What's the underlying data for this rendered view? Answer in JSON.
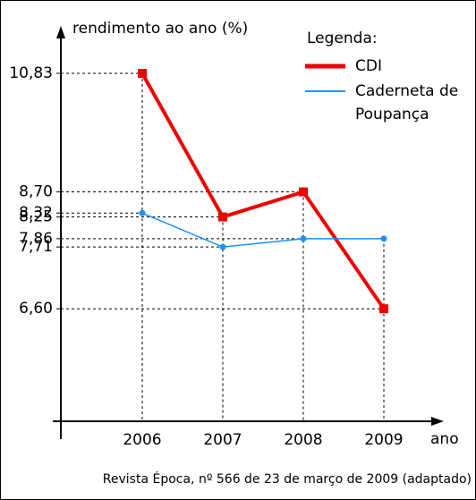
{
  "chart_data": {
    "type": "line",
    "title": "rendimento ao ano (%)",
    "x_label": "ano",
    "legend_title": "Legenda:",
    "source": "Revista Época, nº 566 de 23 de março de 2009 (adaptado)",
    "categories": [
      "2006",
      "2007",
      "2008",
      "2009"
    ],
    "series": [
      {
        "name": "CDI",
        "color": "#ee0000",
        "values": [
          10.83,
          8.25,
          8.7,
          6.6
        ]
      },
      {
        "name": "Caderneta de Poupança",
        "color": "#1e90ff",
        "values": [
          8.32,
          7.71,
          7.86,
          7.86
        ]
      }
    ],
    "ylim": [
      4.45,
      11.65
    ],
    "yticks": [
      {
        "value": 10.83,
        "label": "10,83"
      },
      {
        "value": 8.7,
        "label": "8,70"
      },
      {
        "value": 8.32,
        "label": "8,32"
      },
      {
        "value": 8.25,
        "label": "8,25"
      },
      {
        "value": 7.86,
        "label": "7,86"
      },
      {
        "value": 7.71,
        "label": "7,71"
      },
      {
        "value": 6.6,
        "label": "6,60"
      }
    ]
  }
}
